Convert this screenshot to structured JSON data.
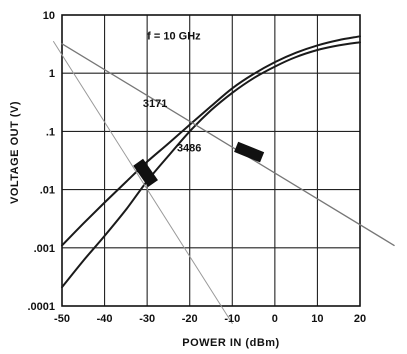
{
  "chart_data": {
    "type": "line",
    "title": "",
    "xlabel": "POWER IN (dBm)",
    "ylabel": "VOLTAGE OUT (V)",
    "xlim": [
      -50,
      20
    ],
    "ylim": [
      0.0001,
      10
    ],
    "yscale": "log",
    "grid": true,
    "x_ticks": [
      -50,
      -40,
      -30,
      -20,
      -10,
      0,
      10,
      20
    ],
    "x_tick_labels": [
      "-50",
      "-40",
      "-30",
      "-20",
      "-10",
      "0",
      "10",
      "20"
    ],
    "y_ticks": [
      0.0001,
      0.001,
      0.01,
      0.1,
      1,
      10
    ],
    "y_tick_labels": [
      ".0001",
      ".001",
      ".01",
      ".1",
      "1",
      "10"
    ],
    "annotations": {
      "frequency": "f = 10 GHz",
      "curve_a": "3171",
      "curve_b": "3486"
    },
    "series": [
      {
        "name": "3171",
        "x": [
          -50,
          -45,
          -40,
          -35,
          -30,
          -25,
          -20,
          -15,
          -10,
          -5,
          0,
          5,
          10,
          15,
          20
        ],
        "y": [
          0.0011,
          0.0026,
          0.006,
          0.0135,
          0.03,
          0.062,
          0.13,
          0.27,
          0.55,
          0.97,
          1.55,
          2.25,
          3.0,
          3.7,
          4.3
        ]
      },
      {
        "name": "3486",
        "x": [
          -50,
          -45,
          -40,
          -35,
          -30,
          -25,
          -20,
          -15,
          -10,
          -5,
          0,
          5,
          10,
          15,
          20
        ],
        "y": [
          0.00021,
          0.0006,
          0.0016,
          0.0045,
          0.014,
          0.038,
          0.1,
          0.23,
          0.46,
          0.82,
          1.3,
          1.9,
          2.5,
          3.0,
          3.4
        ]
      },
      {
        "name": "",
        "x": [
          -50,
          28
        ],
        "y": [
          3.2,
          0.0011
        ]
      },
      {
        "name": "",
        "x": [
          -52,
          -10
        ],
        "y": [
          3.5,
          5e-05
        ]
      }
    ]
  }
}
